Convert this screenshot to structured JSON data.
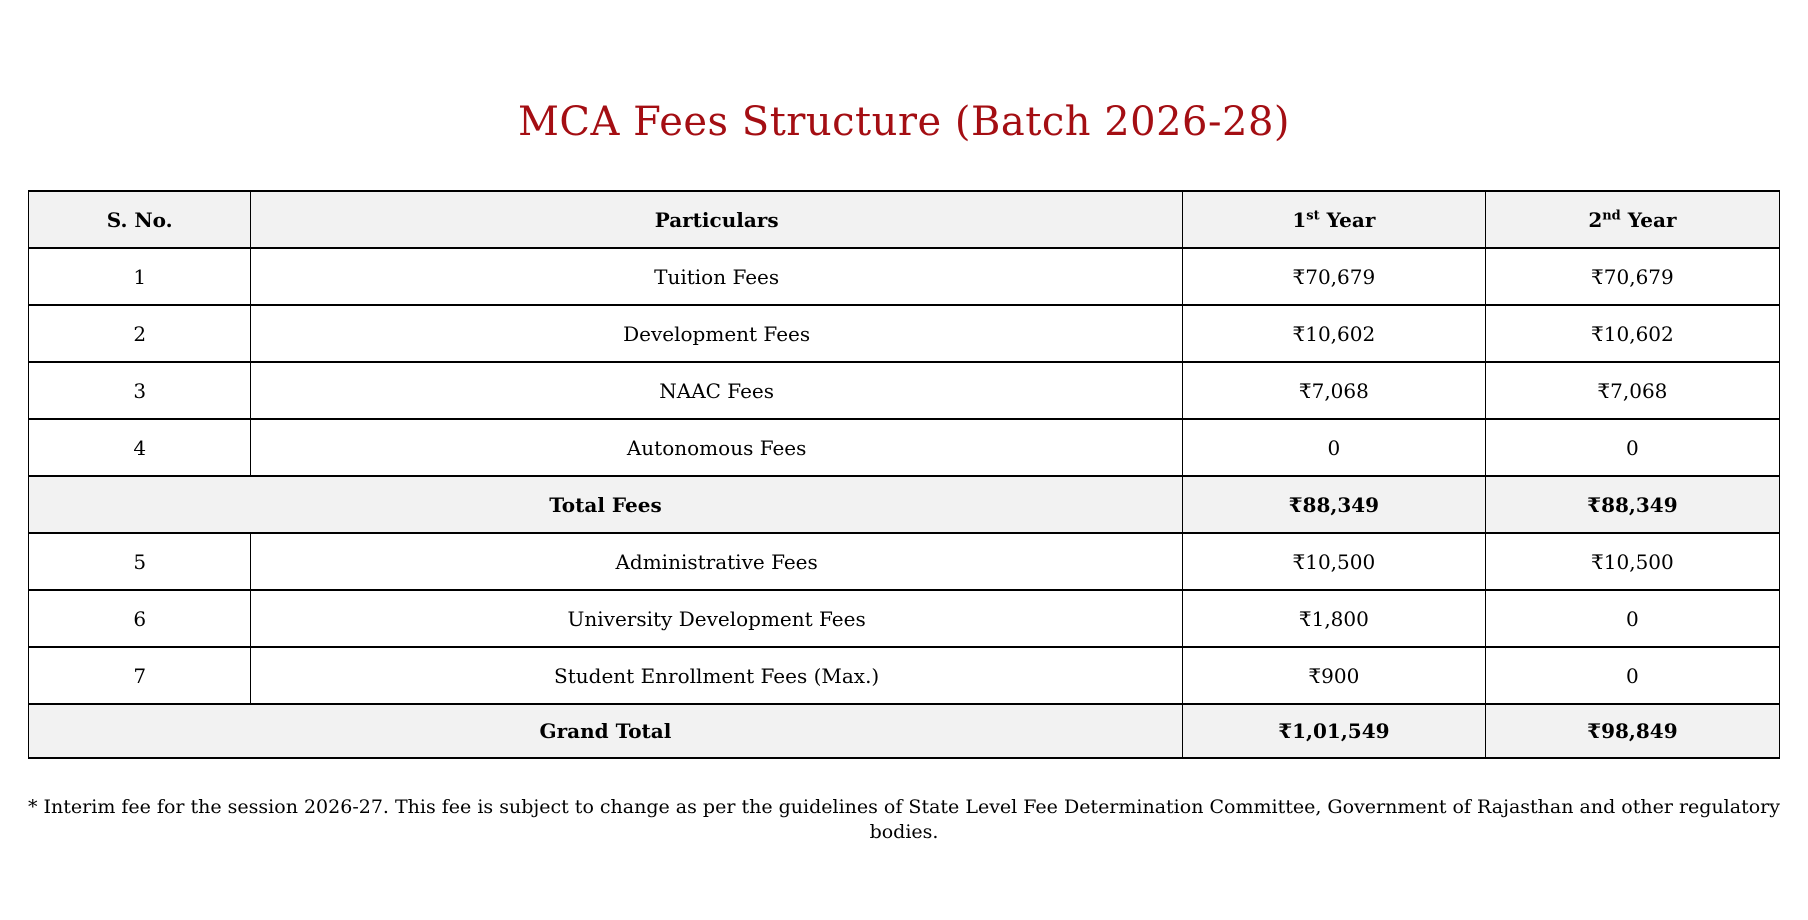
{
  "page": {
    "title": "MCA Fees Structure (Batch 2026-28)",
    "title_color": "#a40e13",
    "footnote": "* Interim fee for the session 2026-27. This fee is subject to change as per the guidelines of State Level Fee Determination Committee, Government of Rajasthan and other regulatory bodies."
  },
  "table": {
    "headers": {
      "sno": "S. No.",
      "particulars": "Particulars",
      "year1": {
        "num": "1",
        "sup": "st",
        "label": "Year"
      },
      "year2": {
        "num": "2",
        "sup": "nd",
        "label": "Year"
      }
    },
    "rows": [
      {
        "sno": "1",
        "particulars": "Tuition Fees",
        "year1": "₹70,679",
        "year2": "₹70,679"
      },
      {
        "sno": "2",
        "particulars": "Development Fees",
        "year1": "₹10,602",
        "year2": "₹10,602"
      },
      {
        "sno": "3",
        "particulars": "NAAC Fees",
        "year1": "₹7,068",
        "year2": "₹7,068"
      },
      {
        "sno": "4",
        "particulars": "Autonomous Fees",
        "year1": "0",
        "year2": "0"
      }
    ],
    "total_row": {
      "label": "Total Fees",
      "year1": "₹88,349",
      "year2": "₹88,349"
    },
    "rows2": [
      {
        "sno": "5",
        "particulars": "Administrative Fees",
        "year1": "₹10,500",
        "year2": "₹10,500"
      },
      {
        "sno": "6",
        "particulars": "University Development Fees",
        "year1": "₹1,800",
        "year2": "0"
      },
      {
        "sno": "7",
        "particulars": "Student Enrollment Fees (Max.)",
        "year1": "₹900",
        "year2": "0"
      }
    ],
    "grand_total_row": {
      "label": "Grand Total",
      "year1": "₹1,01,549",
      "year2": "₹98,849"
    }
  }
}
